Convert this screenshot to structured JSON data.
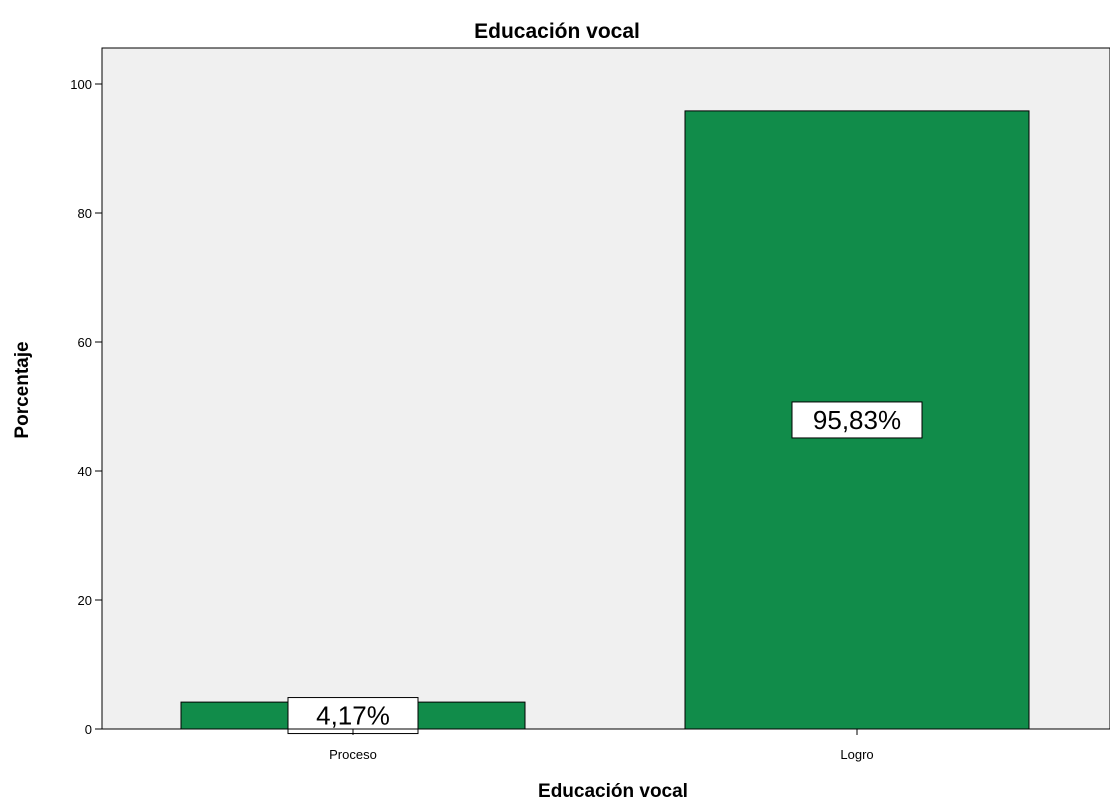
{
  "chart_data": {
    "type": "bar",
    "title": "Educación vocal",
    "xlabel": "Educación vocal",
    "ylabel": "Porcentaje",
    "categories": [
      "Proceso",
      "Logro"
    ],
    "values": [
      4.17,
      95.83
    ],
    "data_labels": [
      "4,17%",
      "95,83%"
    ],
    "ylim": [
      0,
      100
    ],
    "yticks": [
      0,
      20,
      40,
      60,
      80,
      100
    ],
    "grid": false,
    "legend": "none",
    "colors": {
      "bar": "#118c4a",
      "plot_background": "#f0f0f0",
      "label_box": "#ffffff"
    }
  }
}
